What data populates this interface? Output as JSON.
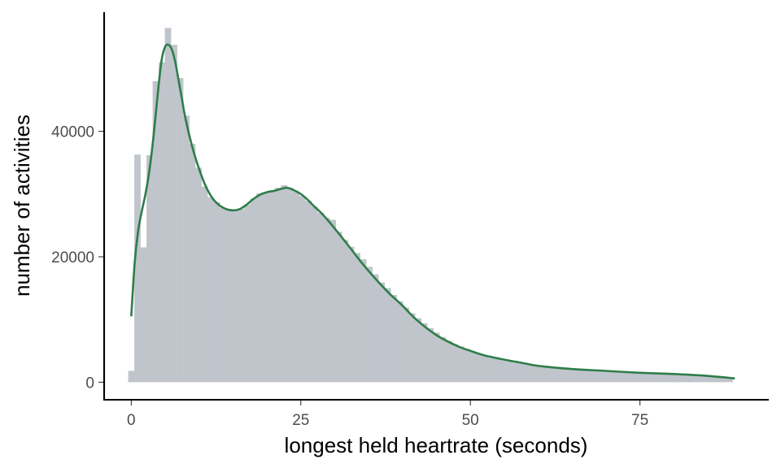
{
  "chart_data": {
    "type": "bar",
    "subtype": "histogram-with-density",
    "xlabel": "longest held heartrate (seconds)",
    "ylabel": "number of activities",
    "xlim": [
      -4,
      94
    ],
    "ylim": [
      -2800,
      59000
    ],
    "x_ticks": [
      {
        "value": 0,
        "label": "0"
      },
      {
        "value": 25,
        "label": "25"
      },
      {
        "value": 50,
        "label": "50"
      },
      {
        "value": 75,
        "label": "75"
      }
    ],
    "y_ticks": [
      {
        "value": 0,
        "label": "0"
      },
      {
        "value": 20000,
        "label": "20000"
      },
      {
        "value": 40000,
        "label": "40000"
      }
    ],
    "grid": false,
    "legend": "none",
    "bin_width": 0.9,
    "bins": [
      {
        "x": 0.0,
        "y": 1800
      },
      {
        "x": 0.9,
        "y": 36300
      },
      {
        "x": 1.8,
        "y": 21500
      },
      {
        "x": 2.7,
        "y": 36200
      },
      {
        "x": 3.6,
        "y": 48000
      },
      {
        "x": 4.5,
        "y": 51000
      },
      {
        "x": 5.4,
        "y": 56500
      },
      {
        "x": 6.3,
        "y": 53800
      },
      {
        "x": 7.2,
        "y": 48500
      },
      {
        "x": 8.1,
        "y": 42500
      },
      {
        "x": 9.0,
        "y": 38000
      },
      {
        "x": 9.9,
        "y": 34200
      },
      {
        "x": 10.8,
        "y": 31200
      },
      {
        "x": 11.7,
        "y": 29500
      },
      {
        "x": 12.6,
        "y": 28700
      },
      {
        "x": 13.5,
        "y": 27800
      },
      {
        "x": 14.4,
        "y": 27500
      },
      {
        "x": 15.3,
        "y": 27300
      },
      {
        "x": 16.2,
        "y": 27600
      },
      {
        "x": 17.1,
        "y": 28300
      },
      {
        "x": 18.0,
        "y": 29300
      },
      {
        "x": 18.9,
        "y": 30100
      },
      {
        "x": 19.8,
        "y": 30300
      },
      {
        "x": 20.7,
        "y": 30600
      },
      {
        "x": 21.6,
        "y": 31000
      },
      {
        "x": 22.5,
        "y": 31400
      },
      {
        "x": 23.4,
        "y": 31000
      },
      {
        "x": 24.3,
        "y": 30400
      },
      {
        "x": 25.2,
        "y": 29700
      },
      {
        "x": 26.1,
        "y": 28900
      },
      {
        "x": 27.0,
        "y": 28000
      },
      {
        "x": 27.9,
        "y": 27000
      },
      {
        "x": 28.8,
        "y": 26200
      },
      {
        "x": 29.7,
        "y": 25900
      },
      {
        "x": 30.6,
        "y": 24000
      },
      {
        "x": 31.5,
        "y": 22700
      },
      {
        "x": 32.4,
        "y": 21600
      },
      {
        "x": 33.3,
        "y": 20600
      },
      {
        "x": 34.2,
        "y": 19600
      },
      {
        "x": 35.1,
        "y": 18400
      },
      {
        "x": 36.0,
        "y": 17200
      },
      {
        "x": 36.9,
        "y": 15900
      },
      {
        "x": 37.8,
        "y": 15000
      },
      {
        "x": 38.7,
        "y": 13900
      },
      {
        "x": 39.6,
        "y": 12900
      },
      {
        "x": 40.5,
        "y": 11900
      },
      {
        "x": 41.4,
        "y": 11000
      },
      {
        "x": 42.3,
        "y": 10200
      },
      {
        "x": 43.2,
        "y": 9400
      },
      {
        "x": 44.1,
        "y": 8600
      },
      {
        "x": 45.0,
        "y": 7900
      },
      {
        "x": 45.9,
        "y": 7200
      },
      {
        "x": 46.8,
        "y": 6600
      },
      {
        "x": 47.7,
        "y": 6100
      },
      {
        "x": 48.6,
        "y": 5700
      },
      {
        "x": 49.5,
        "y": 5300
      },
      {
        "x": 50.4,
        "y": 4900
      },
      {
        "x": 51.3,
        "y": 4500
      },
      {
        "x": 52.2,
        "y": 4200
      },
      {
        "x": 53.1,
        "y": 3900
      },
      {
        "x": 54.0,
        "y": 3700
      },
      {
        "x": 54.9,
        "y": 3500
      },
      {
        "x": 55.8,
        "y": 3300
      },
      {
        "x": 56.7,
        "y": 3100
      },
      {
        "x": 57.6,
        "y": 2950
      },
      {
        "x": 58.5,
        "y": 2800
      },
      {
        "x": 59.4,
        "y": 2700
      },
      {
        "x": 60.3,
        "y": 2600
      },
      {
        "x": 61.2,
        "y": 2500
      },
      {
        "x": 62.1,
        "y": 2400
      },
      {
        "x": 63.0,
        "y": 2300
      },
      {
        "x": 63.9,
        "y": 2250
      },
      {
        "x": 64.8,
        "y": 2200
      },
      {
        "x": 65.7,
        "y": 2100
      },
      {
        "x": 66.6,
        "y": 2050
      },
      {
        "x": 67.5,
        "y": 2000
      },
      {
        "x": 68.4,
        "y": 1950
      },
      {
        "x": 69.3,
        "y": 1900
      },
      {
        "x": 70.2,
        "y": 1850
      },
      {
        "x": 71.1,
        "y": 1800
      },
      {
        "x": 72.0,
        "y": 1750
      },
      {
        "x": 72.9,
        "y": 1700
      },
      {
        "x": 73.8,
        "y": 1650
      },
      {
        "x": 74.7,
        "y": 1600
      },
      {
        "x": 75.6,
        "y": 1550
      },
      {
        "x": 76.5,
        "y": 1500
      },
      {
        "x": 77.4,
        "y": 1450
      },
      {
        "x": 78.3,
        "y": 1400
      },
      {
        "x": 79.2,
        "y": 1350
      },
      {
        "x": 80.1,
        "y": 1300
      },
      {
        "x": 81.0,
        "y": 1250
      },
      {
        "x": 81.9,
        "y": 1200
      },
      {
        "x": 82.8,
        "y": 1150
      },
      {
        "x": 83.7,
        "y": 1100
      },
      {
        "x": 84.6,
        "y": 1050
      },
      {
        "x": 85.5,
        "y": 1000
      },
      {
        "x": 86.4,
        "y": 950
      },
      {
        "x": 87.3,
        "y": 900
      },
      {
        "x": 88.2,
        "y": 700
      }
    ],
    "density_curve": {
      "x": [
        0,
        0.5,
        1,
        1.5,
        2,
        2.5,
        3,
        3.5,
        4,
        4.5,
        5,
        5.5,
        6,
        6.5,
        7,
        7.5,
        8,
        9,
        10,
        11,
        12,
        13,
        14,
        15,
        16,
        17,
        18,
        19,
        20,
        21,
        22,
        23,
        24,
        25,
        26,
        27,
        28,
        29,
        30,
        32,
        34,
        36,
        38,
        40,
        42,
        45,
        48,
        50,
        52,
        55,
        58,
        60,
        65,
        70,
        75,
        80,
        85,
        89
      ],
      "y": [
        10500,
        19000,
        24000,
        27000,
        29500,
        32500,
        36500,
        41500,
        47000,
        51500,
        53500,
        53800,
        53000,
        51000,
        48000,
        45000,
        42000,
        37500,
        34000,
        31200,
        29300,
        28200,
        27600,
        27400,
        27600,
        28300,
        29200,
        29900,
        30300,
        30500,
        30800,
        31000,
        30600,
        30000,
        29100,
        28000,
        27000,
        25800,
        24500,
        21800,
        19000,
        16500,
        14200,
        12200,
        10000,
        7500,
        5800,
        5000,
        4300,
        3600,
        3000,
        2600,
        2100,
        1800,
        1500,
        1300,
        1000,
        600
      ]
    },
    "colors": {
      "bar_fill": "#c0c5cc",
      "density_line": "#2e7d4a",
      "axis": "#000000",
      "tick_label": "#4d4d4d"
    }
  }
}
